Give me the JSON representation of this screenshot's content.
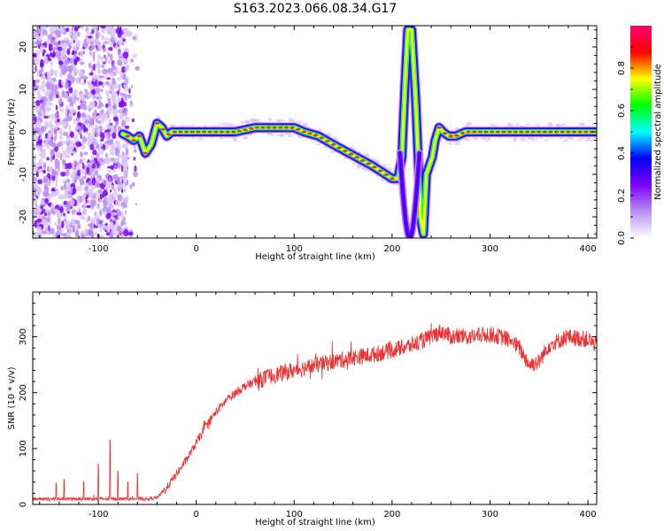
{
  "title": "S163.2023.066.08.34.G17",
  "chart_data": [
    {
      "type": "heatmap",
      "xlabel": "Height of straight line (km)",
      "ylabel": "Frequency (Hz)",
      "xlim": [
        -167,
        409
      ],
      "ylim": [
        -25,
        25
      ],
      "xticks": [
        -100,
        0,
        100,
        200,
        300,
        400
      ],
      "yticks": [
        -20,
        -10,
        0,
        10,
        20
      ],
      "ridge": {
        "x": [
          -167,
          -80,
          -70,
          -64,
          -58,
          -52,
          -46,
          -40,
          -35,
          -30,
          -25,
          -20,
          -10,
          0,
          20,
          40,
          60,
          80,
          100,
          110,
          125,
          140,
          160,
          180,
          200,
          206,
          210,
          213,
          216,
          220,
          224,
          227,
          229,
          232,
          235,
          238,
          241,
          244,
          248,
          252,
          258,
          265,
          275,
          285,
          300,
          320,
          340,
          360,
          380,
          409
        ],
        "y": [
          0,
          0,
          -1,
          -2,
          -1,
          -5,
          -3,
          2,
          1,
          -1,
          0,
          0,
          0,
          0,
          0,
          0,
          1,
          1,
          1,
          0,
          -1,
          -3,
          -5.5,
          -8,
          -11,
          -11,
          -6,
          10,
          24,
          24,
          8,
          -8,
          -20,
          -24,
          -10,
          -8,
          -6,
          -2,
          1,
          0,
          -1,
          -1,
          0,
          0,
          0,
          0,
          0,
          0,
          0,
          0
        ]
      },
      "mirror_lobe_x": [
        208,
        228
      ],
      "colorbar": {
        "label": "Normalized spectral amplitude",
        "range": [
          0,
          1
        ],
        "ticks": [
          "0.0",
          "0.2",
          "0.4",
          "0.6",
          "0.8"
        ],
        "colors": [
          "#ffffff",
          "#b98ff2",
          "#7e00ff",
          "#0000ff",
          "#00ffff",
          "#00ff00",
          "#ffff00",
          "#ff0000",
          "#ff0070"
        ]
      }
    },
    {
      "type": "line",
      "xlabel": "Height of straight line (km)",
      "ylabel": "SNR (10 * v/v)",
      "xlim": [
        -167,
        409
      ],
      "ylim": [
        0,
        380
      ],
      "xticks": [
        -100,
        0,
        100,
        200,
        300,
        400
      ],
      "yticks": [
        0,
        100,
        200,
        300
      ],
      "color": "#ee3030",
      "trend": {
        "x": [
          -167,
          -100,
          -50,
          -40,
          -30,
          -20,
          -10,
          0,
          10,
          20,
          30,
          40,
          50,
          60,
          80,
          100,
          120,
          140,
          160,
          180,
          200,
          220,
          240,
          250,
          260,
          280,
          300,
          320,
          330,
          340,
          350,
          360,
          380,
          400,
          409
        ],
        "y": [
          10,
          10,
          10,
          12,
          30,
          55,
          80,
          110,
          140,
          165,
          185,
          200,
          212,
          220,
          232,
          240,
          248,
          256,
          262,
          268,
          276,
          285,
          300,
          310,
          300,
          300,
          305,
          295,
          280,
          250,
          255,
          285,
          300,
          295,
          285
        ]
      },
      "spikes": [
        [
          -88,
          115
        ],
        [
          -100,
          72
        ],
        [
          -80,
          60
        ],
        [
          -135,
          45
        ],
        [
          -60,
          55
        ],
        [
          -143,
          38
        ],
        [
          -115,
          40
        ],
        [
          -70,
          40
        ]
      ]
    }
  ]
}
